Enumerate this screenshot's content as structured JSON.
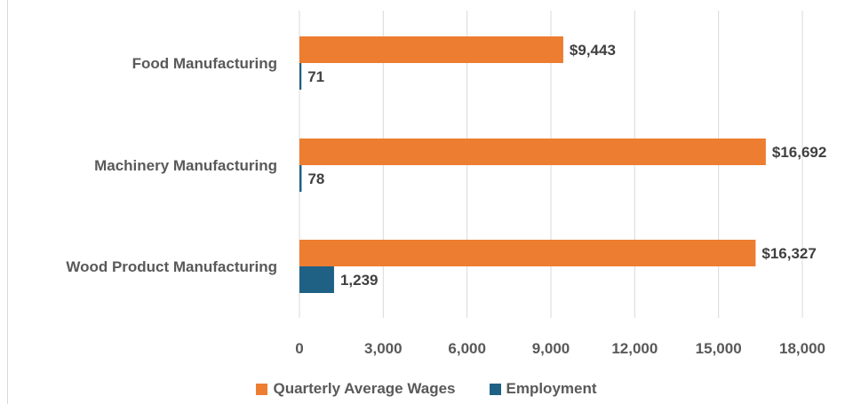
{
  "chart_data": {
    "type": "bar",
    "orientation": "horizontal",
    "categories": [
      "Food Manufacturing",
      "Machinery Manufacturing",
      "Wood Product Manufacturing"
    ],
    "series": [
      {
        "name": "Quarterly Average Wages",
        "color": "#ED7D31",
        "values": [
          9443,
          16692,
          16327
        ],
        "labels": [
          "$9,443",
          "$16,692",
          "$16,327"
        ]
      },
      {
        "name": "Employment",
        "color": "#1F6185",
        "values": [
          71,
          78,
          1239
        ],
        "labels": [
          "71",
          "78",
          "1,239"
        ]
      }
    ],
    "xlim": [
      0,
      18000
    ],
    "xticks": [
      0,
      3000,
      6000,
      9000,
      12000,
      15000,
      18000
    ],
    "xtick_labels": [
      "0",
      "3,000",
      "6,000",
      "9,000",
      "12,000",
      "15,000",
      "18,000"
    ],
    "grid": true,
    "legend_position": "bottom"
  }
}
